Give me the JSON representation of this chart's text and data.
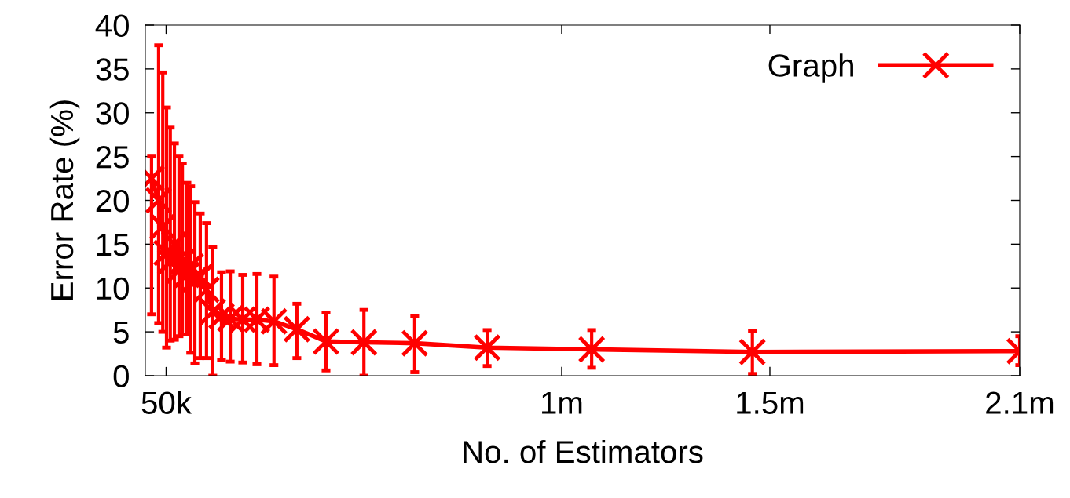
{
  "chart_data": {
    "type": "line",
    "xlabel": "No. of Estimators",
    "ylabel": "Error Rate (%)",
    "x": [
      15000,
      32000,
      42000,
      51000,
      60000,
      70000,
      81000,
      89000,
      100000,
      109000,
      119000,
      132000,
      147000,
      162000,
      183000,
      204000,
      234000,
      268000,
      309000,
      364000,
      434000,
      525000,
      647000,
      821000,
      1072000,
      1458000,
      2100000
    ],
    "series": [
      {
        "name": "Graph",
        "color": "#ff0000",
        "values": [
          22.5,
          20,
          17,
          14,
          13,
          15,
          12,
          13,
          11.5,
          12.5,
          11,
          11.3,
          9.8,
          7.3,
          6.8,
          6.5,
          6.4,
          6.4,
          6.2,
          5.3,
          3.9,
          3.8,
          3.7,
          3.2,
          3.0,
          2.7,
          2.8
        ],
        "errors": [
          [
            7,
            25
          ],
          [
            6,
            37.7
          ],
          [
            5,
            34.6
          ],
          [
            3.2,
            30.6
          ],
          [
            4,
            28.3
          ],
          [
            4.1,
            26.5
          ],
          [
            4.5,
            25
          ],
          [
            4.7,
            24.2
          ],
          [
            4.7,
            22
          ],
          [
            2.6,
            21.6
          ],
          [
            1.4,
            19.8
          ],
          [
            2.0,
            18.5
          ],
          [
            2.0,
            17.4
          ],
          [
            0,
            14.7
          ],
          [
            1.8,
            11.8
          ],
          [
            1.6,
            11.9
          ],
          [
            1.5,
            11.5
          ],
          [
            1.3,
            11.6
          ],
          [
            1.2,
            11.3
          ],
          [
            2.0,
            8.2
          ],
          [
            0.6,
            7.2
          ],
          [
            0,
            7.5
          ],
          [
            0.4,
            6.8
          ],
          [
            1.1,
            5.2
          ],
          [
            0.9,
            5.2
          ],
          [
            0.2,
            5.1
          ],
          [
            1.2,
            4.5
          ]
        ]
      }
    ],
    "xlim": [
      0,
      2100000
    ],
    "xticks": [
      {
        "value": 50000,
        "label": "50k"
      },
      {
        "value": 1000000,
        "label": "1m"
      },
      {
        "value": 1500000,
        "label": "1.5m"
      },
      {
        "value": 2100000,
        "label": "2.1m"
      }
    ],
    "ylim": [
      0,
      40
    ],
    "yticks": [
      0,
      5,
      10,
      15,
      20,
      25,
      30,
      35,
      40
    ],
    "marker": "cross",
    "line_style": "solid",
    "legend": "top right",
    "grid": false
  }
}
